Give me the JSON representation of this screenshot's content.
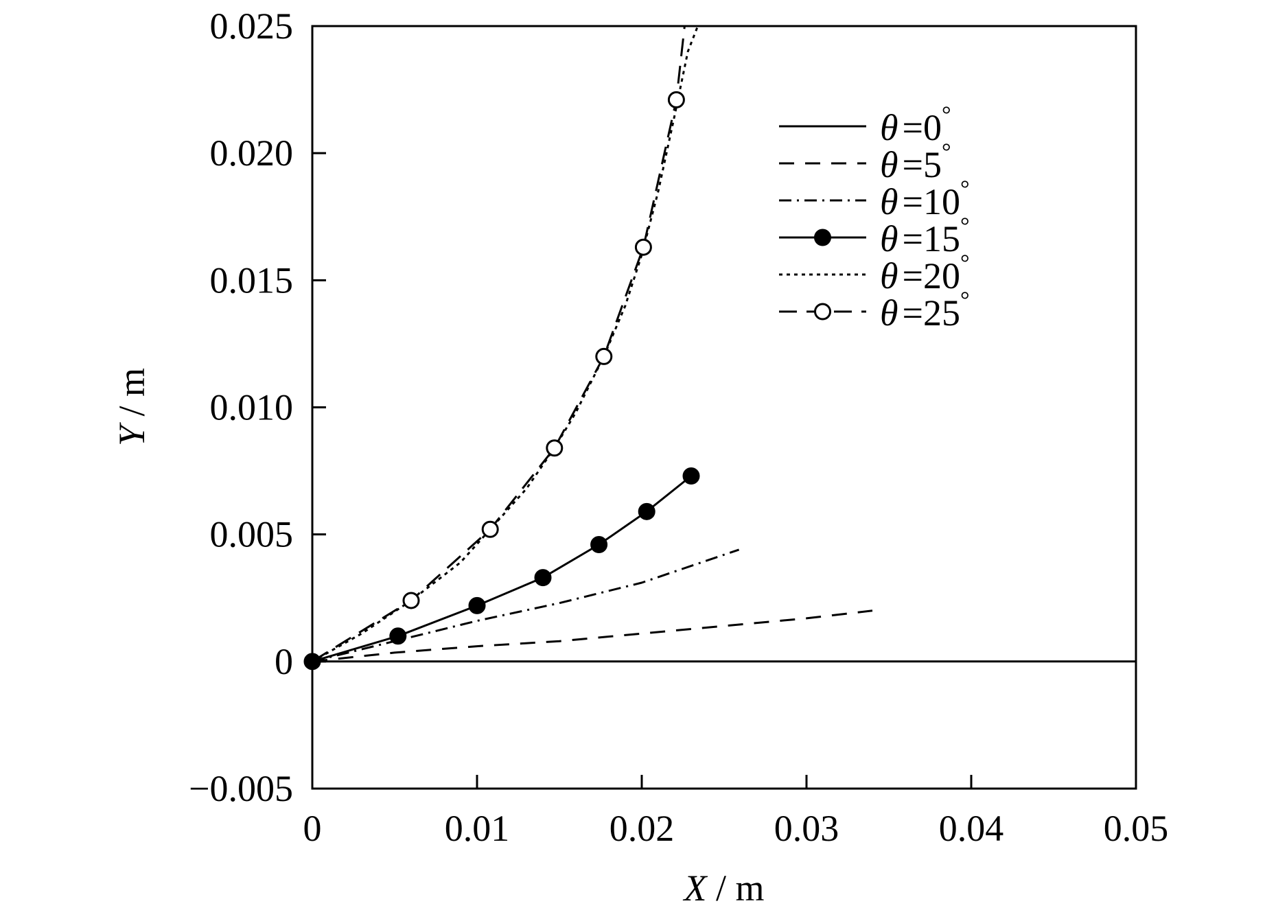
{
  "chart_data": {
    "type": "line",
    "xlabel": {
      "var": "X",
      "unit": " / m"
    },
    "ylabel": {
      "var": "Y",
      "unit": " / m"
    },
    "xlim": [
      0,
      0.05
    ],
    "ylim": [
      -0.005,
      0.025
    ],
    "xticks": [
      0,
      0.01,
      0.02,
      0.03,
      0.04,
      0.05
    ],
    "xtick_labels": [
      "0",
      "0.01",
      "0.02",
      "0.03",
      "0.04",
      "0.05"
    ],
    "yticks": [
      -0.005,
      0,
      0.005,
      0.01,
      0.015,
      0.02,
      0.025
    ],
    "ytick_labels": [
      "−0.005",
      "0",
      "0.005",
      "0.010",
      "0.015",
      "0.020",
      "0.025"
    ],
    "grid": false,
    "legend_position": "top-right",
    "series": [
      {
        "name": "=0",
        "symbol": "θ",
        "degree": "°",
        "style": "solid",
        "marker": "none",
        "x": [
          0,
          0.05
        ],
        "y": [
          0,
          0
        ]
      },
      {
        "name": "=5",
        "symbol": "θ",
        "degree": "°",
        "style": "dashed",
        "marker": "none",
        "x": [
          0,
          0.005,
          0.01,
          0.015,
          0.02,
          0.025,
          0.03,
          0.034
        ],
        "y": [
          0,
          0.00035,
          0.0006,
          0.0008,
          0.0011,
          0.0014,
          0.0017,
          0.002
        ]
      },
      {
        "name": "=10",
        "symbol": "θ",
        "degree": "°",
        "style": "dashdot",
        "marker": "none",
        "x": [
          0,
          0.005,
          0.01,
          0.015,
          0.02,
          0.0259
        ],
        "y": [
          0,
          0.0008,
          0.0016,
          0.0023,
          0.0031,
          0.0044
        ]
      },
      {
        "name": "=15",
        "symbol": "θ",
        "degree": "°",
        "style": "solid",
        "marker": "filled-circle",
        "x": [
          0,
          0.0052,
          0.01,
          0.014,
          0.0174,
          0.0203,
          0.023
        ],
        "y": [
          0,
          0.001,
          0.0022,
          0.0033,
          0.0046,
          0.0059,
          0.0073
        ]
      },
      {
        "name": "=20",
        "symbol": "θ",
        "degree": "°",
        "style": "dotted",
        "marker": "none",
        "x": [
          0,
          0.003,
          0.006,
          0.009,
          0.0108,
          0.013,
          0.0147,
          0.016,
          0.0177,
          0.019,
          0.02,
          0.021,
          0.022,
          0.0228,
          0.0234
        ],
        "y": [
          0,
          0.0011,
          0.0024,
          0.0039,
          0.0052,
          0.0068,
          0.0084,
          0.0098,
          0.012,
          0.014,
          0.016,
          0.0185,
          0.0215,
          0.024,
          0.025
        ]
      },
      {
        "name": "=25",
        "symbol": "θ",
        "degree": "°",
        "style": "longdash",
        "marker": "open-circle",
        "x": [
          0,
          0.006,
          0.0108,
          0.0147,
          0.0177,
          0.0201,
          0.0221,
          0.0226
        ],
        "y": [
          0,
          0.0024,
          0.0052,
          0.0084,
          0.012,
          0.0163,
          0.0221,
          0.025
        ]
      }
    ],
    "marker_points": {
      "=15": {
        "x": [
          0,
          0.0052,
          0.01,
          0.014,
          0.0174,
          0.0203,
          0.023
        ],
        "y": [
          0,
          0.001,
          0.0022,
          0.0033,
          0.0046,
          0.0059,
          0.0073
        ]
      },
      "=25": {
        "x": [
          0.006,
          0.0108,
          0.0147,
          0.0177,
          0.0201,
          0.0221
        ],
        "y": [
          0.0024,
          0.0052,
          0.0084,
          0.012,
          0.0163,
          0.0221
        ]
      }
    }
  }
}
